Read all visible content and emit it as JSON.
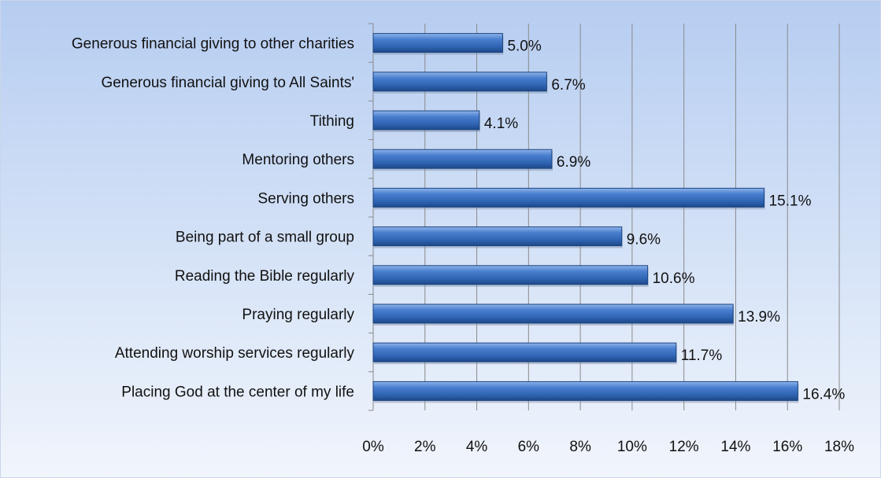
{
  "chart_data": {
    "type": "bar",
    "orientation": "horizontal",
    "categories": [
      "Generous financial giving to other charities",
      "Generous financial giving to All Saints'",
      "Tithing",
      "Mentoring others",
      "Serving others",
      "Being part of a small group",
      "Reading the Bible regularly",
      "Praying regularly",
      "Attending worship services regularly",
      "Placing God at the center of my life"
    ],
    "values": [
      5.0,
      6.7,
      4.1,
      6.9,
      15.1,
      9.6,
      10.6,
      13.9,
      11.7,
      16.4
    ],
    "value_labels": [
      "5.0%",
      "6.7%",
      "4.1%",
      "6.9%",
      "15.1%",
      "9.6%",
      "10.6%",
      "13.9%",
      "11.7%",
      "16.4%"
    ],
    "x_ticks": [
      0,
      2,
      4,
      6,
      8,
      10,
      12,
      14,
      16,
      18
    ],
    "x_tick_labels": [
      "0%",
      "2%",
      "4%",
      "6%",
      "8%",
      "10%",
      "12%",
      "14%",
      "16%",
      "18%"
    ],
    "xlim": [
      0,
      18
    ],
    "title": "",
    "xlabel": "",
    "ylabel": "",
    "grid": true,
    "legend": "none",
    "bar_color": "#2f64b3",
    "bar_highlight": "#7fa7e0",
    "background_top": "#b6cdf1",
    "background_bottom": "#f1f5fc"
  }
}
